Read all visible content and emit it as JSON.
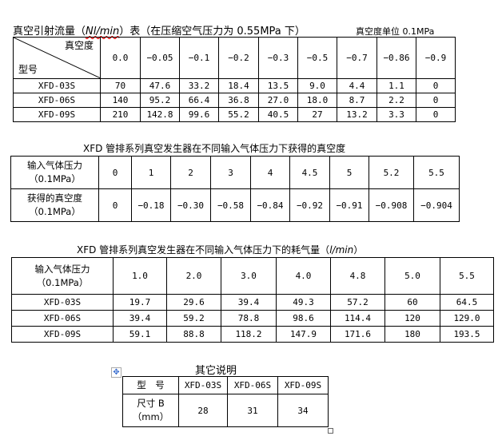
{
  "table1": {
    "title_pre": "真空引射流量（",
    "title_unit": "Nl/min",
    "title_post": "）表（在压缩空气压力为 0.55MPa 下）",
    "unit_note": "真空度单位 0.1MPa",
    "corner_top": "真空度",
    "corner_bottom": "型号",
    "headers": [
      "0.0",
      "−0.05",
      "−0.1",
      "−0.2",
      "−0.3",
      "−0.5",
      "−0.7",
      "−0.86",
      "−0.9"
    ],
    "rows": [
      [
        "XFD-03S",
        "70",
        "47.6",
        "33.2",
        "18.4",
        "13.5",
        "9.0",
        "4.4",
        "1.1",
        "0"
      ],
      [
        "XFD-06S",
        "140",
        "95.2",
        "66.4",
        "36.8",
        "27.0",
        "18.0",
        "8.7",
        "2.2",
        "0"
      ],
      [
        "XFD-09S",
        "210",
        "142.8",
        "99.6",
        "55.2",
        "40.5",
        "27",
        "13.2",
        "3.3",
        "0"
      ]
    ]
  },
  "table2": {
    "title": "XFD 管排系列真空发生器在不同输入气体压力下获得的真空度",
    "rows": [
      [
        "输入气体压力\n（0.1MPa）",
        "0",
        "1",
        "2",
        "3",
        "4",
        "4.5",
        "5",
        "5.2",
        "5.5"
      ],
      [
        "获得的真空度\n（0.1MPa）",
        "0",
        "−0.18",
        "−0.30",
        "−0.58",
        "−0.84",
        "−0.92",
        "−0.91",
        "−0.908",
        "−0.904"
      ]
    ]
  },
  "table3": {
    "title_pre": "XFD 管排系列真空发生器在不同输入气体压力下的耗气量（",
    "title_unit": "l/min",
    "title_post": "）",
    "rows": [
      [
        "输入气体压力\n（0.1MPa）",
        "1.0",
        "2.0",
        "3.0",
        "4.0",
        "4.8",
        "5.0",
        "5.5"
      ],
      [
        "XFD-03S",
        "19.7",
        "29.6",
        "39.4",
        "49.3",
        "57.2",
        "60",
        "64.5"
      ],
      [
        "XFD-06S",
        "39.4",
        "59.2",
        "78.8",
        "98.6",
        "114.4",
        "120",
        "129.0"
      ],
      [
        "XFD-09S",
        "59.1",
        "88.8",
        "118.2",
        "147.9",
        "171.6",
        "180",
        "193.5"
      ]
    ]
  },
  "table4": {
    "title": "其它说明",
    "rows": [
      [
        "型　号",
        "XFD-03S",
        "XFD-06S",
        "XFD-09S"
      ],
      [
        "尺寸 B\n（mm）",
        "28",
        "31",
        "34"
      ]
    ]
  }
}
